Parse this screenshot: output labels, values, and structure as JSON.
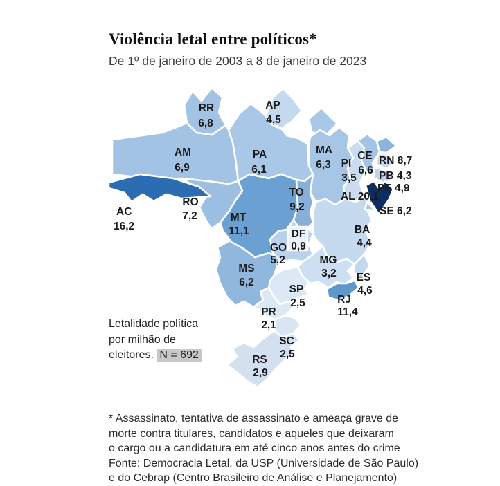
{
  "header": {
    "title": "Violência letal entre políticos*",
    "subtitle": "De 1º de janeiro de 2003 a 8 de janeiro de 2023"
  },
  "note": {
    "line1": "Letalidade política",
    "line2": "por milhão de",
    "line3_prefix": "eleitores. ",
    "badge": "N = 692",
    "badge_bg": "#c8c8c8"
  },
  "footnote": {
    "lines": [
      "* Assassinato, tentativa de assassinato e ameaça grave de",
      "morte contra titulares, candidatos e aqueles que deixaram",
      "o cargo ou a candidatura em até cinco anos antes do crime",
      "Fonte: Democracia Letal, da USP (Universidade de São Paulo)",
      "e do Cebrap (Centro Brasileiro de Análise e Planejamento)"
    ]
  },
  "chart_data": {
    "type": "choropleth_map",
    "region": "Brazil (states)",
    "title": "Violência letal entre políticos*",
    "subtitle": "De 1º de janeiro de 2003 a 8 de janeiro de 2023",
    "unit": "Letalidade política por milhão de eleitores",
    "n_total": 692,
    "color_scale": {
      "min_color": "#ecf2fa",
      "max_color": "#0d2e5e"
    },
    "states": [
      {
        "code": "RR",
        "value": 6.8,
        "display": "6,8",
        "color": "#a3c3e5"
      },
      {
        "code": "AP",
        "value": 4.5,
        "display": "4,5",
        "color": "#c4d8ee"
      },
      {
        "code": "AM",
        "value": 6.9,
        "display": "6,9",
        "color": "#a2c3e4"
      },
      {
        "code": "PA",
        "value": 6.1,
        "display": "6,1",
        "color": "#a9c8e7"
      },
      {
        "code": "MA",
        "value": 6.3,
        "display": "6,3",
        "color": "#a7c6e6"
      },
      {
        "code": "PI",
        "value": 3.5,
        "display": "3,5",
        "color": "#cbdcf0"
      },
      {
        "code": "CE",
        "value": 6.6,
        "display": "6,6",
        "color": "#a4c4e5"
      },
      {
        "code": "RN",
        "value": 8.7,
        "display": "8,7",
        "color": "#8cb3da"
      },
      {
        "code": "PB",
        "value": 4.3,
        "display": "4,3",
        "color": "#c6d9ef"
      },
      {
        "code": "PE",
        "value": 4.9,
        "display": "4,9",
        "color": "#bed4ec"
      },
      {
        "code": "AL",
        "value": 20.1,
        "display": "20,1",
        "color": "#0d2e5e"
      },
      {
        "code": "SE",
        "value": 6.2,
        "display": "6,2",
        "color": "#a8c7e6"
      },
      {
        "code": "AC",
        "value": 16.2,
        "display": "16,2",
        "color": "#2c6cb3"
      },
      {
        "code": "RO",
        "value": 7.2,
        "display": "7,2",
        "color": "#9dc0e2"
      },
      {
        "code": "MT",
        "value": 11.1,
        "display": "11,1",
        "color": "#6ba1d2"
      },
      {
        "code": "TO",
        "value": 9.2,
        "display": "9,2",
        "color": "#87afd8"
      },
      {
        "code": "BA",
        "value": 4.4,
        "display": "4,4",
        "color": "#c5d9ef"
      },
      {
        "code": "DF",
        "value": 0.9,
        "display": "0,9",
        "color": "#ecf2fa"
      },
      {
        "code": "GO",
        "value": 5.2,
        "display": "5,2",
        "color": "#b9d1eb"
      },
      {
        "code": "MS",
        "value": 6.2,
        "display": "6,2",
        "color": "#90b7de"
      },
      {
        "code": "MG",
        "value": 3.2,
        "display": "3,2",
        "color": "#cddff2"
      },
      {
        "code": "ES",
        "value": 4.6,
        "display": "4,6",
        "color": "#c3d7ee"
      },
      {
        "code": "RJ",
        "value": 11.4,
        "display": "11,4",
        "color": "#5f97cd"
      },
      {
        "code": "SP",
        "value": 2.5,
        "display": "2,5",
        "color": "#dce8f5"
      },
      {
        "code": "PR",
        "value": 2.1,
        "display": "2,1",
        "color": "#dde8f5"
      },
      {
        "code": "SC",
        "value": 2.5,
        "display": "2,5",
        "color": "#d9e5f3"
      },
      {
        "code": "RS",
        "value": 2.9,
        "display": "2,9",
        "color": "#d2e0f0"
      }
    ]
  }
}
